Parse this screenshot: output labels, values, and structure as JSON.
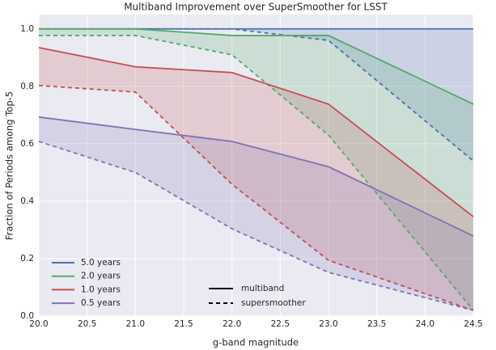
{
  "chart_data": {
    "type": "line",
    "title": "Multiband Improvement over SuperSmoother for LSST",
    "x_label": "g-band magnitude",
    "y_label": "Fraction of Periods among Top-5",
    "x": [
      20.0,
      21.0,
      22.0,
      23.0,
      24.5
    ],
    "series": [
      {
        "name": "5.0 years",
        "color": "#4C72B0",
        "values": [
          1.0,
          1.0,
          1.0,
          1.0,
          1.0
        ],
        "baseline_values": [
          1.0,
          1.0,
          1.0,
          0.96,
          0.54
        ]
      },
      {
        "name": "2.0 years",
        "color": "#55A868",
        "values": [
          1.0,
          1.0,
          0.977,
          0.977,
          0.738
        ],
        "baseline_values": [
          0.977,
          0.977,
          0.91,
          0.63,
          0.02
        ]
      },
      {
        "name": "1.0 years",
        "color": "#C44E52",
        "values": [
          0.935,
          0.868,
          0.848,
          0.738,
          0.346
        ],
        "baseline_values": [
          0.803,
          0.78,
          0.459,
          0.194,
          0.02
        ]
      },
      {
        "name": "0.5 years",
        "color": "#8172B2",
        "values": [
          0.693,
          0.65,
          0.608,
          0.52,
          0.279
        ],
        "baseline_values": [
          0.608,
          0.5,
          0.304,
          0.152,
          0.02
        ]
      }
    ],
    "style_legend": [
      "multiband",
      "supersmoother"
    ],
    "xlim": [
      20.0,
      24.5
    ],
    "xticks": [
      {
        "value": 20.0,
        "label": "20.0"
      },
      20.5,
      {
        "value": 21.0,
        "label": "21.0"
      },
      21.5,
      {
        "value": 22.0,
        "label": "22.0"
      },
      22.5,
      {
        "value": 23.0,
        "label": "23.0"
      },
      23.5,
      {
        "value": 24.0,
        "label": "24.0"
      },
      24.5
    ],
    "ylim": [
      0,
      1.05
    ],
    "yticks": [
      {
        "value": 0.0,
        "label": "0.0"
      },
      0.2,
      0.4,
      0.6,
      0.8,
      {
        "value": 1.0,
        "label": "1.0"
      }
    ],
    "grid": true
  }
}
